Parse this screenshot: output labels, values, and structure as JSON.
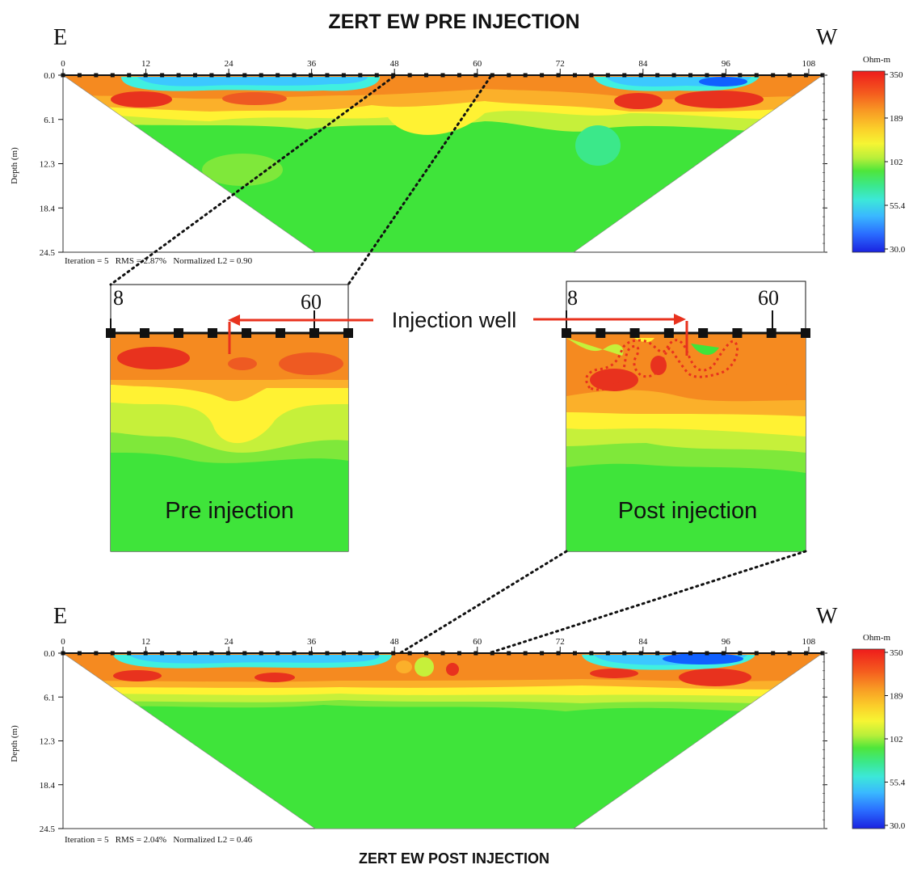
{
  "top_title": "ZERT EW PRE INJECTION",
  "bottom_title": "ZERT EW POST INJECTION",
  "direction_left": "E",
  "direction_right": "W",
  "x_ticks": [
    "0",
    "12",
    "24",
    "36",
    "48",
    "60",
    "72",
    "84",
    "96",
    "108"
  ],
  "y_ticks": [
    "0.0",
    "6.1",
    "12.3",
    "18.4",
    "24.5"
  ],
  "y_label": "Depth (m)",
  "colorbar_title": "Ohm-m",
  "colorbar_ticks": [
    "350",
    "189",
    "102",
    "55.4",
    "30.0"
  ],
  "pre_stats": "Iteration = 5   RMS = 2.87%   Normalized L2 = 0.90",
  "post_stats": "Iteration = 5   RMS = 2.04%   Normalized L2 = 0.46",
  "inset_left_label": "8",
  "inset_right_label": "60",
  "inset_pre_label": "Pre injection",
  "inset_post_label": "Post injection",
  "injection_well_label": "Injection well",
  "colors": {
    "red": "#e8321e",
    "orange": "#f58a20",
    "light_orange": "#fbb02a",
    "yellow": "#fff233",
    "yellow_green": "#c6f03a",
    "green": "#3fe43a",
    "cyan": "#40f0e0",
    "light_blue": "#3cc8ff",
    "blue": "#1060ff",
    "arrow_red": "#e8321e"
  }
}
